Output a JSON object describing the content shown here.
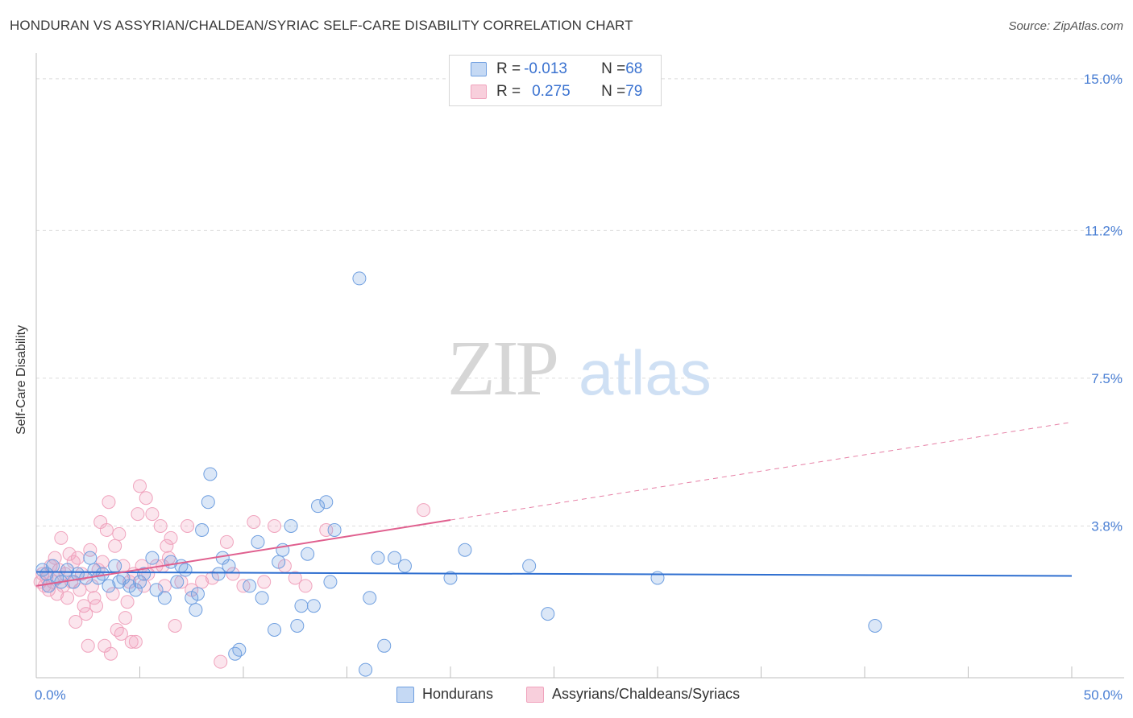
{
  "title": "HONDURAN VS ASSYRIAN/CHALDEAN/SYRIAC SELF-CARE DISABILITY CORRELATION CHART",
  "source": "Source: ZipAtlas.com",
  "watermark": {
    "zip": "ZIP",
    "atlas": "atlas"
  },
  "legend": {
    "rows": [
      {
        "r_label": "R = ",
        "r_value": "-0.013",
        "n_label": "N = ",
        "n_value": "68"
      },
      {
        "r_label": "R = ",
        "r_value": "0.275",
        "n_label": "N = ",
        "n_value": "79"
      }
    ]
  },
  "bottom_legend": [
    "Hondurans",
    "Assyrians/Chaldeans/Syriacs"
  ],
  "chart_data": {
    "type": "scatter",
    "title": "HONDURAN VS ASSYRIAN/CHALDEAN/SYRIAC SELF-CARE DISABILITY CORRELATION CHART",
    "xlabel": "",
    "ylabel": "Self-Care Disability",
    "xlim": [
      0,
      50
    ],
    "ylim": [
      0,
      15.4
    ],
    "x_tick_labels": [
      "0.0%",
      "50.0%"
    ],
    "y_ticks": [
      3.8,
      7.5,
      11.2,
      15.0
    ],
    "y_tick_labels": [
      "3.8%",
      "7.5%",
      "11.2%",
      "15.0%"
    ],
    "colors": {
      "hondurans": "#6f9fe0",
      "assyrians": "#f0a3bd",
      "blue_line": "#2f6fd0",
      "pink_line": "#e0608f"
    },
    "series": [
      {
        "name": "Hondurans",
        "r": -0.013,
        "n": 68,
        "trend": {
          "x": [
            0,
            50
          ],
          "y": [
            2.65,
            2.55
          ],
          "style": "solid"
        },
        "points": [
          [
            0.3,
            2.7
          ],
          [
            0.5,
            2.6
          ],
          [
            0.8,
            2.8
          ],
          [
            1.0,
            2.5
          ],
          [
            1.2,
            2.4
          ],
          [
            0.6,
            2.3
          ],
          [
            1.5,
            2.7
          ],
          [
            1.8,
            2.4
          ],
          [
            2.0,
            2.6
          ],
          [
            2.4,
            2.5
          ],
          [
            2.6,
            3.0
          ],
          [
            2.8,
            2.7
          ],
          [
            3.0,
            2.5
          ],
          [
            3.2,
            2.6
          ],
          [
            3.5,
            2.3
          ],
          [
            3.8,
            2.8
          ],
          [
            4.0,
            2.4
          ],
          [
            4.2,
            2.5
          ],
          [
            4.5,
            2.3
          ],
          [
            4.8,
            2.2
          ],
          [
            5.0,
            2.4
          ],
          [
            5.2,
            2.6
          ],
          [
            5.6,
            3.0
          ],
          [
            5.8,
            2.2
          ],
          [
            6.2,
            2.0
          ],
          [
            6.5,
            2.9
          ],
          [
            6.8,
            2.4
          ],
          [
            7.0,
            2.8
          ],
          [
            7.2,
            2.7
          ],
          [
            7.5,
            2.0
          ],
          [
            7.7,
            1.7
          ],
          [
            7.8,
            2.1
          ],
          [
            8.0,
            3.7
          ],
          [
            8.3,
            4.4
          ],
          [
            8.4,
            5.1
          ],
          [
            8.8,
            2.6
          ],
          [
            9.0,
            3.0
          ],
          [
            9.3,
            2.8
          ],
          [
            9.6,
            0.6
          ],
          [
            9.8,
            0.7
          ],
          [
            10.3,
            2.3
          ],
          [
            10.7,
            3.4
          ],
          [
            10.9,
            2.0
          ],
          [
            11.5,
            1.2
          ],
          [
            11.7,
            2.9
          ],
          [
            11.9,
            3.2
          ],
          [
            12.3,
            3.8
          ],
          [
            12.6,
            1.3
          ],
          [
            12.8,
            1.8
          ],
          [
            13.1,
            3.1
          ],
          [
            13.4,
            1.8
          ],
          [
            13.6,
            4.3
          ],
          [
            14.0,
            4.4
          ],
          [
            14.2,
            2.4
          ],
          [
            14.4,
            3.7
          ],
          [
            15.6,
            10.0
          ],
          [
            15.9,
            0.2
          ],
          [
            16.1,
            2.0
          ],
          [
            16.5,
            3.0
          ],
          [
            16.8,
            0.8
          ],
          [
            17.3,
            3.0
          ],
          [
            17.8,
            2.8
          ],
          [
            20.0,
            2.5
          ],
          [
            20.7,
            3.2
          ],
          [
            23.8,
            2.8
          ],
          [
            24.7,
            1.6
          ],
          [
            30.0,
            2.5
          ],
          [
            40.5,
            1.3
          ]
        ]
      },
      {
        "name": "Assyrians/Chaldeans/Syriacs",
        "r": 0.275,
        "n": 79,
        "trend": {
          "x": [
            0,
            20
          ],
          "y": [
            2.3,
            3.95
          ],
          "style": "solid",
          "extended": {
            "x": [
              20,
              50
            ],
            "y": [
              3.95,
              6.4
            ],
            "style": "dashed"
          }
        },
        "points": [
          [
            0.2,
            2.4
          ],
          [
            0.3,
            2.6
          ],
          [
            0.4,
            2.3
          ],
          [
            0.5,
            2.5
          ],
          [
            0.6,
            2.2
          ],
          [
            0.7,
            2.8
          ],
          [
            0.8,
            2.4
          ],
          [
            0.9,
            3.0
          ],
          [
            1.0,
            2.1
          ],
          [
            1.1,
            2.7
          ],
          [
            1.2,
            3.5
          ],
          [
            1.3,
            2.3
          ],
          [
            1.4,
            2.6
          ],
          [
            1.5,
            2.0
          ],
          [
            1.6,
            3.1
          ],
          [
            1.7,
            2.4
          ],
          [
            1.8,
            2.9
          ],
          [
            1.9,
            1.4
          ],
          [
            2.0,
            3.0
          ],
          [
            2.1,
            2.2
          ],
          [
            2.2,
            2.6
          ],
          [
            2.3,
            1.8
          ],
          [
            2.4,
            1.6
          ],
          [
            2.5,
            0.8
          ],
          [
            2.6,
            3.2
          ],
          [
            2.7,
            2.3
          ],
          [
            2.8,
            2.0
          ],
          [
            2.9,
            1.8
          ],
          [
            3.0,
            2.7
          ],
          [
            3.1,
            3.9
          ],
          [
            3.2,
            2.9
          ],
          [
            3.3,
            0.8
          ],
          [
            3.4,
            3.7
          ],
          [
            3.5,
            4.4
          ],
          [
            3.6,
            0.6
          ],
          [
            3.7,
            2.1
          ],
          [
            3.8,
            3.3
          ],
          [
            3.9,
            1.2
          ],
          [
            4.0,
            3.6
          ],
          [
            4.1,
            1.1
          ],
          [
            4.2,
            2.8
          ],
          [
            4.3,
            1.5
          ],
          [
            4.4,
            1.9
          ],
          [
            4.5,
            2.4
          ],
          [
            4.6,
            0.9
          ],
          [
            4.7,
            2.6
          ],
          [
            4.8,
            0.9
          ],
          [
            4.9,
            4.1
          ],
          [
            5.0,
            4.8
          ],
          [
            5.1,
            2.8
          ],
          [
            5.2,
            2.3
          ],
          [
            5.3,
            4.5
          ],
          [
            5.4,
            2.6
          ],
          [
            5.6,
            4.1
          ],
          [
            5.8,
            2.8
          ],
          [
            6.0,
            3.8
          ],
          [
            6.1,
            2.8
          ],
          [
            6.2,
            2.3
          ],
          [
            6.3,
            3.3
          ],
          [
            6.4,
            3.0
          ],
          [
            6.5,
            3.5
          ],
          [
            6.7,
            1.3
          ],
          [
            7.0,
            2.4
          ],
          [
            7.3,
            3.8
          ],
          [
            7.5,
            2.2
          ],
          [
            8.0,
            2.4
          ],
          [
            8.5,
            2.5
          ],
          [
            8.9,
            0.4
          ],
          [
            9.2,
            3.4
          ],
          [
            9.5,
            2.6
          ],
          [
            10.0,
            2.3
          ],
          [
            10.5,
            3.9
          ],
          [
            11.0,
            2.4
          ],
          [
            11.5,
            3.8
          ],
          [
            12.0,
            2.8
          ],
          [
            12.5,
            2.5
          ],
          [
            13.0,
            2.3
          ],
          [
            14.0,
            3.7
          ],
          [
            18.7,
            4.2
          ]
        ]
      }
    ]
  }
}
